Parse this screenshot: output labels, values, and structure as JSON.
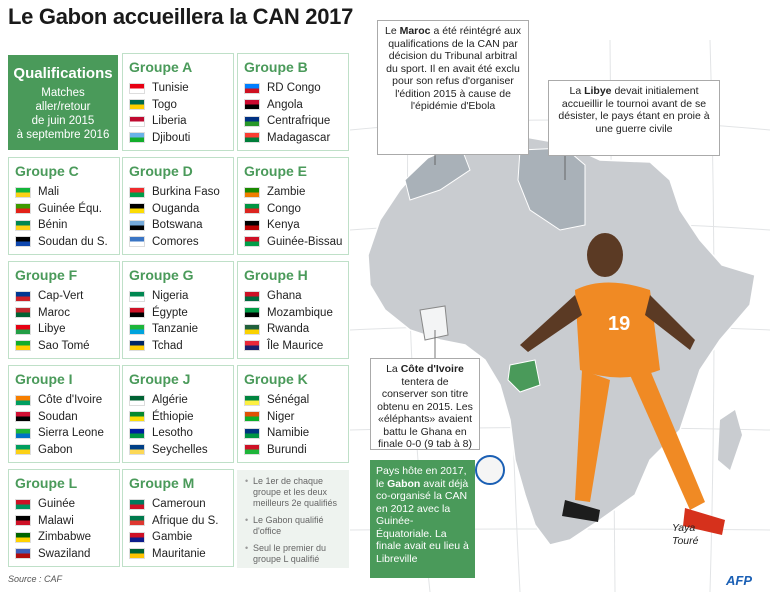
{
  "title": "Le Gabon accueillera  la CAN 2017",
  "qualifications": {
    "heading": "Qualifications",
    "line1": "Matches",
    "line2": "aller/retour",
    "line3": "de juin 2015",
    "line4": "à septembre 2016"
  },
  "groups": [
    {
      "name": "Groupe A",
      "teams": [
        "Tunisie",
        "Togo",
        "Liberia",
        "Djibouti"
      ]
    },
    {
      "name": "Groupe B",
      "teams": [
        "RD Congo",
        "Angola",
        "Centrafrique",
        "Madagascar"
      ]
    },
    {
      "name": "Groupe C",
      "teams": [
        "Mali",
        "Guinée Équ.",
        "Bénin",
        "Soudan du S."
      ]
    },
    {
      "name": "Groupe D",
      "teams": [
        "Burkina Faso",
        "Ouganda",
        "Botswana",
        "Comores"
      ]
    },
    {
      "name": "Groupe E",
      "teams": [
        "Zambie",
        "Congo",
        "Kenya",
        "Guinée-Bissau"
      ]
    },
    {
      "name": "Groupe F",
      "teams": [
        "Cap-Vert",
        "Maroc",
        "Libye",
        "Sao Tomé"
      ]
    },
    {
      "name": "Groupe G",
      "teams": [
        "Nigeria",
        "Égypte",
        "Tanzanie",
        "Tchad"
      ]
    },
    {
      "name": "Groupe H",
      "teams": [
        "Ghana",
        "Mozambique",
        "Rwanda",
        "Île Maurice"
      ]
    },
    {
      "name": "Groupe I",
      "teams": [
        "Côte d'Ivoire",
        "Soudan",
        "Sierra Leone",
        "Gabon"
      ]
    },
    {
      "name": "Groupe J",
      "teams": [
        "Algérie",
        "Éthiopie",
        "Lesotho",
        "Seychelles"
      ]
    },
    {
      "name": "Groupe K",
      "teams": [
        "Sénégal",
        "Niger",
        "Namibie",
        "Burundi"
      ]
    },
    {
      "name": "Groupe L",
      "teams": [
        "Guinée",
        "Malawi",
        "Zimbabwe",
        "Swaziland"
      ]
    },
    {
      "name": "Groupe M",
      "teams": [
        "Cameroun",
        "Afrique du S.",
        "Gambie",
        "Mauritanie"
      ]
    }
  ],
  "notes": [
    "Le 1er de chaque groupe et les deux meilleurs 2e qualifiés",
    "Le Gabon qualifié d'office",
    "Seul le premier du groupe L qualifié"
  ],
  "source": "Source : CAF",
  "callouts": {
    "maroc_bold": "Maroc",
    "maroc_pre": "Le ",
    "maroc_text": " a été réintégré aux qualifications de la CAN par décision du Tribunal arbitral du sport. Il en avait été exclu pour son refus d'organiser l'édition 2015 à cause de l'épidémie d'Ebola",
    "libye_pre": "La ",
    "libye_bold": "Libye",
    "libye_text": " devait initialement accueillir le tournoi avant de se désister, le pays étant en proie à une guerre civile",
    "ci_pre": "La ",
    "ci_bold": "Côte d'Ivoire",
    "ci_text": " tentera de conserver son titre obtenu en 2015. Les «éléphants» avaient battu le Ghana en finale 0-0 (9 tab à 8)",
    "gabon_pre": "Pays hôte en 2017, le ",
    "gabon_bold": "Gabon",
    "gabon_text1": " avait déjà co-organisé la CAN en 2012",
    "gabon_text2": " avec la Guinée-Équatoriale. La finale avait eu lieu à Libreville"
  },
  "player": {
    "first": "Yaya",
    "last": "Touré",
    "number": "19"
  },
  "logo": "AFP",
  "colors": {
    "accent": "#4a9a5a",
    "map": "#c9ccd0",
    "player_shirt": "#f08a24"
  }
}
